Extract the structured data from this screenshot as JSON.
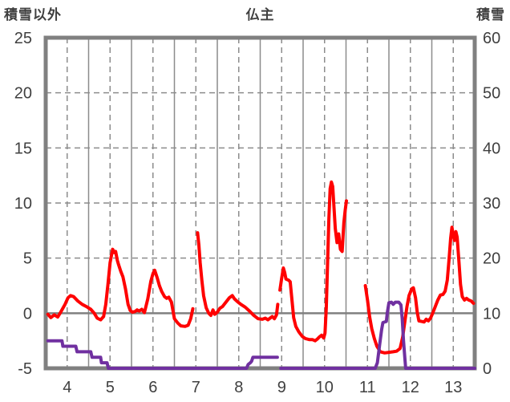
{
  "header": {
    "left_axis_title": "積雪以外",
    "chart_title": "仏主",
    "right_axis_title": "積雪"
  },
  "chart_data": {
    "type": "line",
    "title": "仏主",
    "x_axis": {
      "min": 3.5,
      "max": 13.5,
      "ticks": [
        4,
        5,
        6,
        7,
        8,
        9,
        10,
        11,
        12,
        13
      ],
      "dashed_gridlines_at": [
        4,
        5,
        6,
        7,
        8,
        9,
        10,
        11,
        12,
        13
      ],
      "solid_gridlines_at": [
        4.5,
        5.5,
        6.5,
        7.5,
        8.5,
        9.5,
        10.5,
        11.5,
        12.5
      ]
    },
    "left_axis": {
      "title": "積雪以外",
      "min": -5,
      "max": 25,
      "ticks": [
        25,
        20,
        15,
        10,
        5,
        0,
        -5
      ],
      "dashed_gridlines_at": [
        20,
        15,
        10,
        5
      ],
      "solid_gridlines_at": [
        0
      ]
    },
    "right_axis": {
      "title": "積雪",
      "min": 0,
      "max": 60,
      "ticks": [
        60,
        50,
        40,
        30,
        20,
        10,
        0
      ]
    },
    "colors": {
      "grid": "#8c8c8c",
      "border": "#808080",
      "zero_line": "#808080",
      "tick_text": "#404040",
      "series_red": "#ff0000",
      "series_purple": "#7030a0",
      "background": "#ffffff"
    },
    "legend_position": "none",
    "grid": true,
    "series": [
      {
        "name": "積雪以外",
        "axis": "left",
        "color": "#ff0000",
        "segments": [
          [
            [
              3.55,
              -0.1
            ],
            [
              3.62,
              -0.4
            ],
            [
              3.7,
              -0.15
            ],
            [
              3.78,
              -0.35
            ],
            [
              3.85,
              0.1
            ],
            [
              3.95,
              0.8
            ],
            [
              4.02,
              1.4
            ],
            [
              4.08,
              1.6
            ],
            [
              4.15,
              1.5
            ],
            [
              4.25,
              1.1
            ],
            [
              4.35,
              0.8
            ],
            [
              4.45,
              0.6
            ],
            [
              4.55,
              0.35
            ],
            [
              4.63,
              0.0
            ],
            [
              4.7,
              -0.45
            ],
            [
              4.78,
              -0.6
            ],
            [
              4.85,
              -0.3
            ],
            [
              4.9,
              0.8
            ],
            [
              4.95,
              2.6
            ],
            [
              5.0,
              4.6
            ],
            [
              5.03,
              5.2
            ],
            [
              5.06,
              5.8
            ],
            [
              5.1,
              5.5
            ],
            [
              5.13,
              5.6
            ],
            [
              5.17,
              4.8
            ],
            [
              5.2,
              4.4
            ],
            [
              5.25,
              3.8
            ],
            [
              5.3,
              3.3
            ],
            [
              5.36,
              2.2
            ],
            [
              5.42,
              0.8
            ],
            [
              5.47,
              0.25
            ],
            [
              5.52,
              0.1
            ],
            [
              5.58,
              0.15
            ],
            [
              5.63,
              0.3
            ],
            [
              5.68,
              0.2
            ],
            [
              5.74,
              0.35
            ],
            [
              5.8,
              0.05
            ],
            [
              5.88,
              1.3
            ],
            [
              5.95,
              2.9
            ],
            [
              6.0,
              3.6
            ],
            [
              6.04,
              3.9
            ],
            [
              6.1,
              3.2
            ],
            [
              6.15,
              2.5
            ],
            [
              6.2,
              2.0
            ],
            [
              6.27,
              1.5
            ],
            [
              6.32,
              1.35
            ],
            [
              6.37,
              1.45
            ],
            [
              6.43,
              1.0
            ],
            [
              6.5,
              -0.5
            ],
            [
              6.58,
              -0.9
            ],
            [
              6.65,
              -1.15
            ],
            [
              6.75,
              -1.2
            ],
            [
              6.82,
              -1.1
            ],
            [
              6.88,
              -0.5
            ],
            [
              6.93,
              0.4
            ]
          ],
          [
            [
              7.04,
              7.3
            ],
            [
              7.07,
              6.2
            ],
            [
              7.1,
              4.6
            ],
            [
              7.14,
              3.0
            ],
            [
              7.18,
              1.6
            ],
            [
              7.24,
              0.5
            ],
            [
              7.3,
              0.0
            ],
            [
              7.35,
              -0.2
            ],
            [
              7.4,
              0.3
            ],
            [
              7.44,
              -0.1
            ],
            [
              7.5,
              0.1
            ],
            [
              7.56,
              0.45
            ],
            [
              7.62,
              0.6
            ],
            [
              7.7,
              1.0
            ],
            [
              7.78,
              1.4
            ],
            [
              7.85,
              1.6
            ],
            [
              7.9,
              1.3
            ],
            [
              7.97,
              1.05
            ],
            [
              8.05,
              0.8
            ],
            [
              8.15,
              0.55
            ],
            [
              8.25,
              0.2
            ],
            [
              8.35,
              -0.2
            ],
            [
              8.45,
              -0.5
            ],
            [
              8.55,
              -0.55
            ],
            [
              8.62,
              -0.45
            ],
            [
              8.68,
              -0.6
            ],
            [
              8.73,
              -0.45
            ],
            [
              8.78,
              -0.3
            ],
            [
              8.83,
              -0.5
            ],
            [
              8.88,
              -0.15
            ],
            [
              8.91,
              0.8
            ]
          ],
          [
            [
              8.96,
              2.1
            ],
            [
              9.0,
              3.2
            ],
            [
              9.04,
              4.1
            ],
            [
              9.07,
              3.7
            ],
            [
              9.1,
              3.1
            ],
            [
              9.16,
              3.0
            ],
            [
              9.2,
              2.85
            ],
            [
              9.24,
              1.2
            ],
            [
              9.28,
              -0.4
            ],
            [
              9.33,
              -1.2
            ],
            [
              9.4,
              -1.7
            ],
            [
              9.48,
              -2.1
            ],
            [
              9.55,
              -2.3
            ],
            [
              9.65,
              -2.4
            ],
            [
              9.72,
              -2.4
            ],
            [
              9.78,
              -2.5
            ],
            [
              9.83,
              -2.35
            ],
            [
              9.88,
              -2.15
            ],
            [
              9.93,
              -2.0
            ],
            [
              9.98,
              -2.25
            ],
            [
              10.01,
              -1.8
            ],
            [
              10.04,
              0.5
            ],
            [
              10.07,
              4.5
            ],
            [
              10.1,
              8.5
            ],
            [
              10.13,
              11.3
            ],
            [
              10.16,
              11.9
            ],
            [
              10.19,
              11.5
            ],
            [
              10.22,
              9.6
            ],
            [
              10.25,
              7.7
            ],
            [
              10.29,
              6.4
            ],
            [
              10.33,
              7.2
            ],
            [
              10.37,
              5.8
            ],
            [
              10.41,
              5.6
            ],
            [
              10.45,
              8.2
            ],
            [
              10.48,
              9.3
            ],
            [
              10.51,
              10.2
            ]
          ],
          [
            [
              10.95,
              2.5
            ],
            [
              11.0,
              1.2
            ],
            [
              11.05,
              -0.3
            ],
            [
              11.1,
              -1.4
            ],
            [
              11.16,
              -2.3
            ],
            [
              11.22,
              -3.0
            ],
            [
              11.3,
              -3.5
            ],
            [
              11.4,
              -3.6
            ],
            [
              11.5,
              -3.55
            ],
            [
              11.6,
              -3.5
            ],
            [
              11.68,
              -3.45
            ],
            [
              11.76,
              -3.2
            ],
            [
              11.82,
              -2.2
            ],
            [
              11.87,
              -0.8
            ],
            [
              11.92,
              0.6
            ],
            [
              11.97,
              1.6
            ],
            [
              12.03,
              2.2
            ],
            [
              12.07,
              2.3
            ],
            [
              12.12,
              1.4
            ],
            [
              12.16,
              0.1
            ],
            [
              12.2,
              -0.7
            ],
            [
              12.26,
              -0.75
            ],
            [
              12.32,
              -0.8
            ],
            [
              12.37,
              -0.55
            ],
            [
              12.42,
              -0.7
            ],
            [
              12.47,
              -0.45
            ],
            [
              12.52,
              0.0
            ],
            [
              12.58,
              0.6
            ],
            [
              12.64,
              1.2
            ],
            [
              12.7,
              1.65
            ],
            [
              12.76,
              1.7
            ],
            [
              12.81,
              2.0
            ],
            [
              12.86,
              3.0
            ],
            [
              12.9,
              4.8
            ],
            [
              12.94,
              6.8
            ],
            [
              12.97,
              7.8
            ],
            [
              13.0,
              7.0
            ],
            [
              13.03,
              6.6
            ],
            [
              13.06,
              7.4
            ],
            [
              13.09,
              6.9
            ],
            [
              13.13,
              4.8
            ],
            [
              13.17,
              2.6
            ],
            [
              13.21,
              1.5
            ],
            [
              13.26,
              1.2
            ],
            [
              13.31,
              1.35
            ],
            [
              13.36,
              1.2
            ],
            [
              13.42,
              1.1
            ],
            [
              13.47,
              0.9
            ]
          ]
        ]
      },
      {
        "name": "積雪",
        "axis": "right",
        "color": "#7030a0",
        "segments": [
          [
            [
              3.55,
              5
            ],
            [
              3.88,
              5
            ],
            [
              3.9,
              4
            ],
            [
              4.2,
              4
            ],
            [
              4.23,
              3
            ],
            [
              4.55,
              3
            ],
            [
              4.58,
              2
            ],
            [
              4.78,
              2
            ],
            [
              4.8,
              1
            ],
            [
              4.93,
              1
            ],
            [
              4.96,
              0
            ],
            [
              8.18,
              0
            ],
            [
              8.22,
              0.7
            ],
            [
              8.27,
              1
            ],
            [
              8.3,
              1.3
            ],
            [
              8.33,
              2
            ],
            [
              8.9,
              2
            ]
          ],
          [
            [
              8.98,
              0
            ],
            [
              11.18,
              0
            ],
            [
              11.23,
              1
            ],
            [
              11.28,
              4
            ],
            [
              11.33,
              7
            ],
            [
              11.36,
              8.3
            ],
            [
              11.44,
              8.5
            ],
            [
              11.46,
              10
            ],
            [
              11.5,
              11.9
            ],
            [
              11.56,
              12
            ],
            [
              11.6,
              11.6
            ],
            [
              11.65,
              12
            ],
            [
              11.73,
              12
            ],
            [
              11.78,
              11.5
            ],
            [
              11.81,
              9
            ],
            [
              11.84,
              5
            ],
            [
              11.87,
              2
            ],
            [
              11.89,
              0
            ],
            [
              13.5,
              0
            ]
          ]
        ]
      }
    ]
  }
}
